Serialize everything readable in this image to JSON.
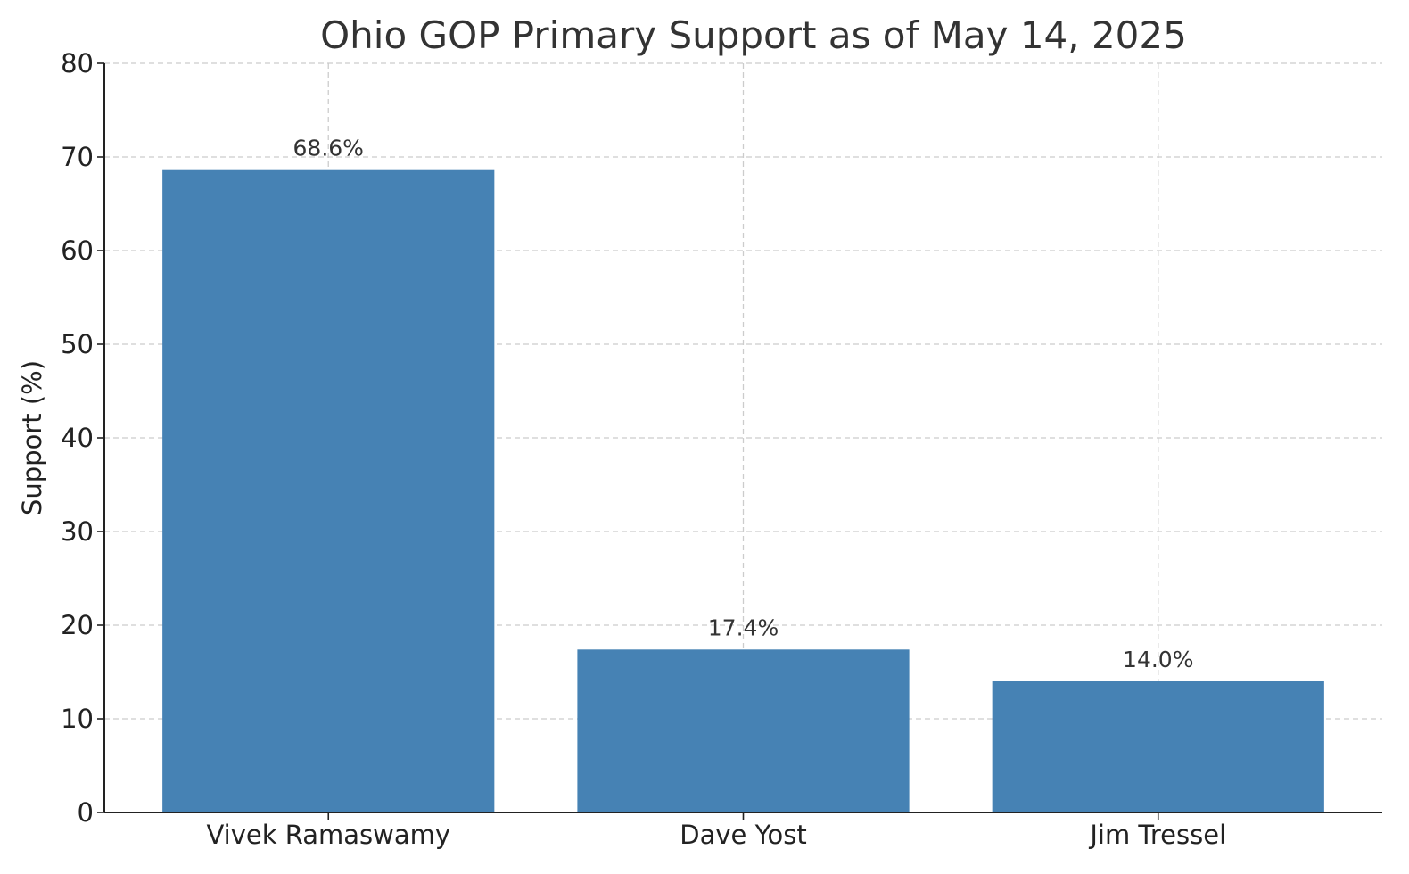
{
  "chart_data": {
    "type": "bar",
    "title": "Ohio GOP Primary Support as of May 14, 2025",
    "xlabel": "",
    "ylabel": "Support (%)",
    "categories": [
      "Vivek Ramaswamy",
      "Dave Yost",
      "Jim Tressel"
    ],
    "values": [
      68.6,
      17.4,
      14.0
    ],
    "value_labels": [
      "68.6%",
      "17.4%",
      "14.0%"
    ],
    "ylim": [
      0,
      80
    ],
    "yticks": [
      0,
      10,
      20,
      30,
      40,
      50,
      60,
      70,
      80
    ],
    "ytick_labels": [
      "0",
      "10",
      "20",
      "30",
      "40",
      "50",
      "60",
      "70",
      "80"
    ],
    "grid": true,
    "legend": "none",
    "bar_color": "#4682b4"
  }
}
